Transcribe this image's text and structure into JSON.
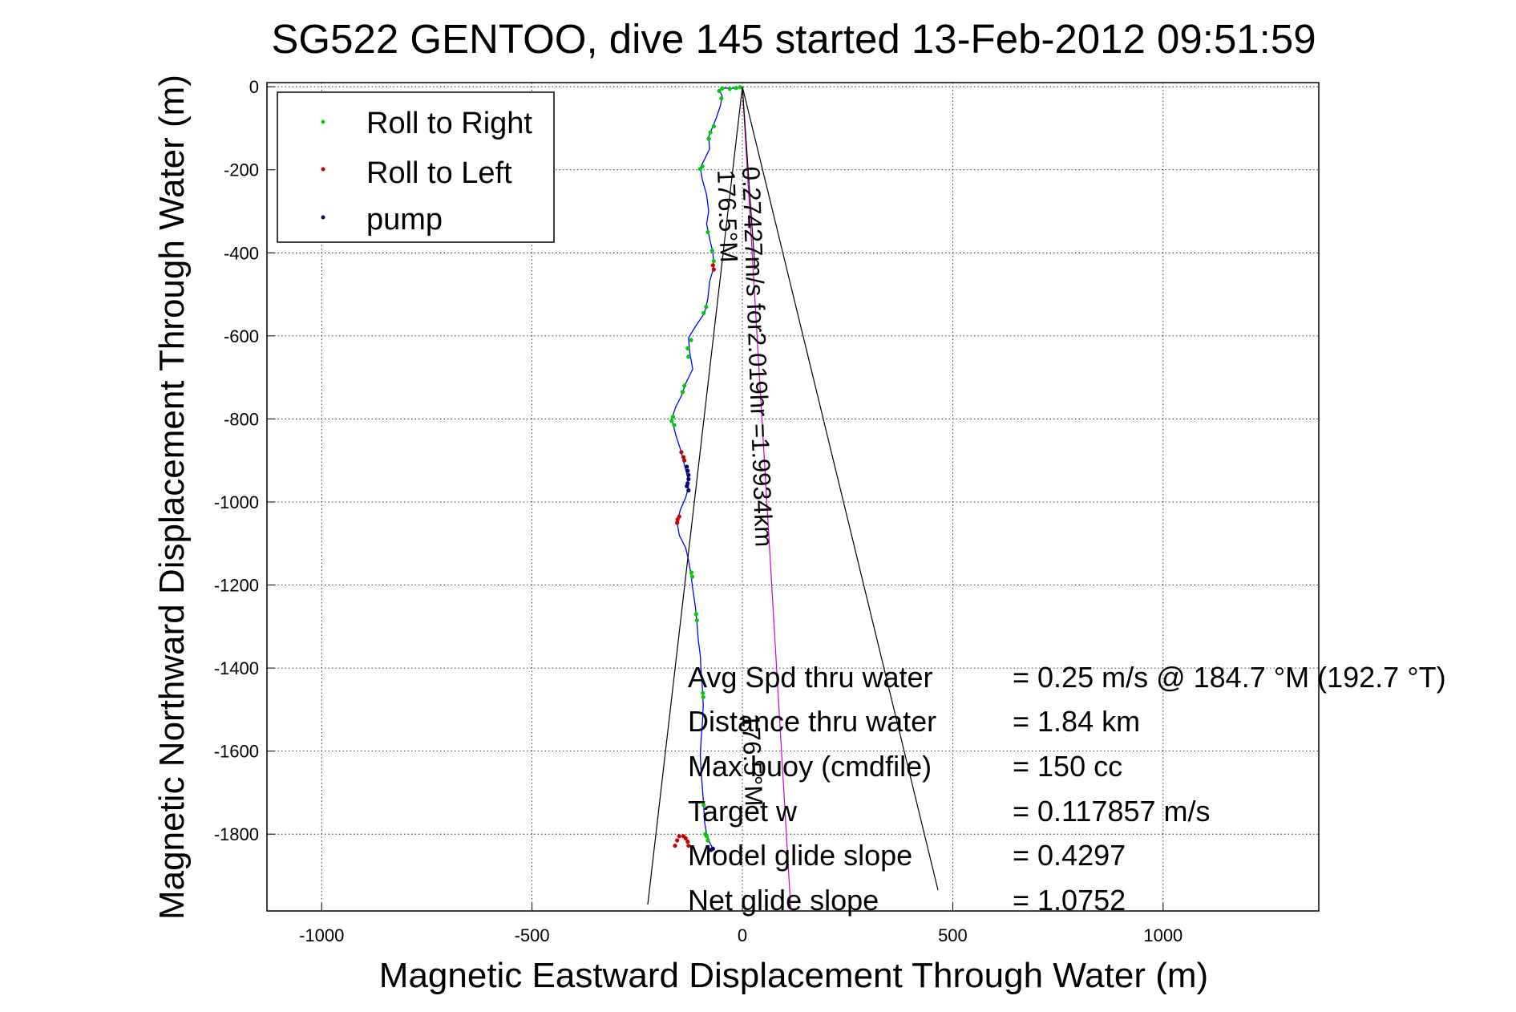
{
  "chart_data": {
    "type": "scatter",
    "title": "SG522 GENTOO, dive 145 started 13-Feb-2012 09:51:59",
    "xlabel": "Magnetic Eastward Displacement Through Water (m)",
    "ylabel": "Magnetic Northward Displacement Through Water (m)",
    "xlim": [
      -1130,
      1370
    ],
    "ylim": [
      -1985,
      10
    ],
    "xticks": [
      -1000,
      -500,
      0,
      500,
      1000
    ],
    "yticks": [
      0,
      -200,
      -400,
      -600,
      -800,
      -1000,
      -1200,
      -1400,
      -1600,
      -1800
    ],
    "grid": true,
    "legend_position": "top-left",
    "legend": [
      {
        "label": "Roll to Right",
        "color": "#00cc00"
      },
      {
        "label": "Roll to Left",
        "color": "#cc0000"
      },
      {
        "label": "pump",
        "color": "#000066"
      }
    ],
    "track": {
      "color": "#0000ff",
      "points": [
        [
          0,
          0
        ],
        [
          -10,
          -2
        ],
        [
          -25,
          -4
        ],
        [
          -45,
          -3
        ],
        [
          -55,
          -8
        ],
        [
          -48,
          -22
        ],
        [
          -52,
          -45
        ],
        [
          -62,
          -75
        ],
        [
          -72,
          -100
        ],
        [
          -80,
          -120
        ],
        [
          -78,
          -150
        ],
        [
          -90,
          -175
        ],
        [
          -100,
          -195
        ],
        [
          -95,
          -225
        ],
        [
          -85,
          -260
        ],
        [
          -80,
          -300
        ],
        [
          -85,
          -330
        ],
        [
          -78,
          -365
        ],
        [
          -70,
          -400
        ],
        [
          -68,
          -435
        ],
        [
          -78,
          -470
        ],
        [
          -82,
          -510
        ],
        [
          -90,
          -545
        ],
        [
          -110,
          -575
        ],
        [
          -128,
          -605
        ],
        [
          -125,
          -640
        ],
        [
          -118,
          -680
        ],
        [
          -135,
          -715
        ],
        [
          -145,
          -745
        ],
        [
          -158,
          -770
        ],
        [
          -168,
          -800
        ],
        [
          -158,
          -840
        ],
        [
          -145,
          -880
        ],
        [
          -138,
          -910
        ],
        [
          -130,
          -940
        ],
        [
          -128,
          -965
        ],
        [
          -135,
          -990
        ],
        [
          -148,
          -1020
        ],
        [
          -155,
          -1050
        ],
        [
          -150,
          -1080
        ],
        [
          -135,
          -1110
        ],
        [
          -128,
          -1140
        ],
        [
          -122,
          -1175
        ],
        [
          -118,
          -1210
        ],
        [
          -112,
          -1250
        ],
        [
          -108,
          -1290
        ],
        [
          -105,
          -1330
        ],
        [
          -100,
          -1370
        ],
        [
          -98,
          -1410
        ],
        [
          -95,
          -1450
        ],
        [
          -93,
          -1490
        ],
        [
          -95,
          -1530
        ],
        [
          -98,
          -1570
        ],
        [
          -100,
          -1610
        ],
        [
          -98,
          -1650
        ],
        [
          -95,
          -1690
        ],
        [
          -92,
          -1730
        ],
        [
          -90,
          -1770
        ],
        [
          -85,
          -1800
        ],
        [
          -78,
          -1820
        ],
        [
          -70,
          -1835
        ]
      ]
    },
    "roll_right_points": [
      [
        -5,
        -1
      ],
      [
        -15,
        -3
      ],
      [
        -30,
        -5
      ],
      [
        -48,
        -4
      ],
      [
        -55,
        -10
      ],
      [
        -50,
        -28
      ],
      [
        -68,
        -95
      ],
      [
        -76,
        -110
      ],
      [
        -80,
        -125
      ],
      [
        -95,
        -192
      ],
      [
        -100,
        -198
      ],
      [
        -82,
        -350
      ],
      [
        -72,
        -395
      ],
      [
        -68,
        -420
      ],
      [
        -86,
        -530
      ],
      [
        -92,
        -545
      ],
      [
        -122,
        -610
      ],
      [
        -130,
        -630
      ],
      [
        -128,
        -650
      ],
      [
        -138,
        -720
      ],
      [
        -142,
        -735
      ],
      [
        -165,
        -795
      ],
      [
        -168,
        -805
      ],
      [
        -162,
        -815
      ],
      [
        -121,
        -1170
      ],
      [
        -119,
        -1180
      ],
      [
        -110,
        -1270
      ],
      [
        -108,
        -1285
      ],
      [
        -94,
        -1460
      ],
      [
        -93,
        -1470
      ],
      [
        -92,
        -1730
      ],
      [
        -88,
        -1800
      ],
      [
        -85,
        -1805
      ],
      [
        -82,
        -1815
      ]
    ],
    "roll_left_points": [
      [
        -70,
        -430
      ],
      [
        -68,
        -440
      ],
      [
        -145,
        -880
      ],
      [
        -140,
        -892
      ],
      [
        -138,
        -900
      ],
      [
        -150,
        -1035
      ],
      [
        -154,
        -1042
      ],
      [
        -155,
        -1050
      ],
      [
        -150,
        -1805
      ],
      [
        -140,
        -1805
      ],
      [
        -135,
        -1810
      ],
      [
        -130,
        -1818
      ],
      [
        -128,
        -1828
      ],
      [
        -155,
        -1815
      ],
      [
        -160,
        -1828
      ]
    ],
    "pump_points": [
      [
        -132,
        -915
      ],
      [
        -130,
        -925
      ],
      [
        -128,
        -935
      ],
      [
        -128,
        -945
      ],
      [
        -130,
        -955
      ],
      [
        -132,
        -962
      ],
      [
        -128,
        -972
      ],
      [
        -70,
        -1835
      ],
      [
        -75,
        -1838
      ]
    ],
    "lines": [
      {
        "name": "cone-left",
        "color": "#000000",
        "from": [
          0,
          0
        ],
        "to": [
          -225,
          -1970
        ]
      },
      {
        "name": "cone-right",
        "color": "#000000",
        "from": [
          0,
          0
        ],
        "to": [
          465,
          -1935
        ]
      },
      {
        "name": "avg-heading",
        "color": "#cc00cc",
        "from": [
          0,
          0
        ],
        "to": [
          115,
          -1980
        ]
      },
      {
        "name": "model-heading",
        "color": "#000000",
        "from": [
          0,
          0
        ],
        "to": [
          30,
          -440
        ]
      }
    ],
    "annotations": {
      "speed_line": "0.27427m/s for2.019hr =1.9934km",
      "heading1": "176.5°M",
      "heading2": "176.5°M"
    },
    "stats": [
      {
        "label": "Avg Spd thru water",
        "value": "=  0.25 m/s @ 184.7 °M (192.7 °T)"
      },
      {
        "label": "Distance thru water",
        "value": "=  1.84 km"
      },
      {
        "label": "Max buoy (cmdfile)",
        "value": "= 150 cc"
      },
      {
        "label": "Target w",
        "value": "= 0.117857 m/s"
      },
      {
        "label": "Model glide slope",
        "value": "= 0.4297"
      },
      {
        "label": "Net glide slope",
        "value": "= 1.0752"
      }
    ]
  }
}
